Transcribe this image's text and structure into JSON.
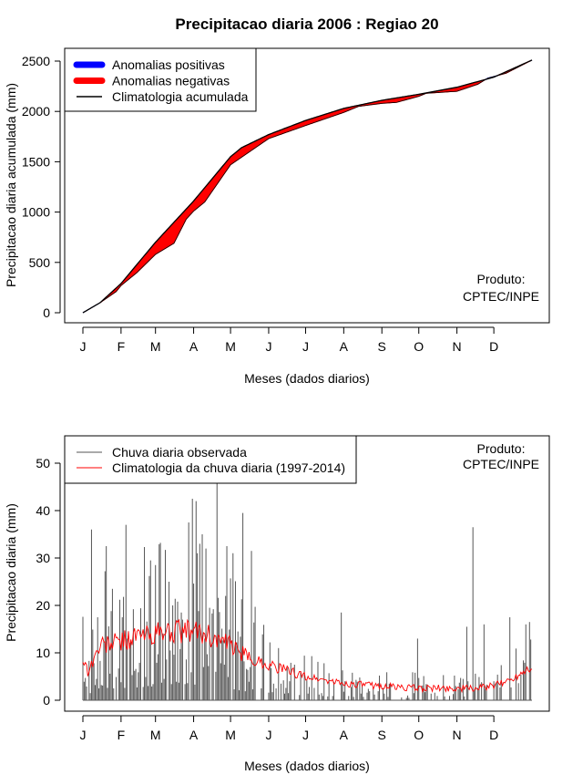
{
  "page": {
    "title": "Precipitacao diaria 2006 : Regiao 20"
  },
  "chart_data": [
    {
      "type": "area",
      "id": "accumulated",
      "title": "Precipitacao diaria 2006 : Regiao 20",
      "xlabel": "Meses (dados diarios)",
      "ylabel": "Precipitacao diaria acumulada (mm)",
      "x_tick_labels": [
        "J",
        "F",
        "M",
        "A",
        "M",
        "J",
        "J",
        "A",
        "S",
        "O",
        "N",
        "D"
      ],
      "x_tick_days": [
        1,
        32,
        60,
        91,
        121,
        152,
        182,
        213,
        244,
        274,
        305,
        335
      ],
      "xlim": [
        1,
        366
      ],
      "ylim": [
        0,
        2500
      ],
      "y_ticks": [
        0,
        500,
        1000,
        1500,
        2000,
        2500
      ],
      "legend": {
        "position": "top-left",
        "entries": [
          {
            "label": "Anomalias positivas",
            "color": "#0000ff",
            "style": "thick-line"
          },
          {
            "label": "Anomalias negativas",
            "color": "#ff0000",
            "style": "thick-line"
          },
          {
            "label": "Climatologia acumulada",
            "color": "#000000",
            "style": "line"
          }
        ]
      },
      "annotation": [
        "Produto:",
        "CPTEC/INPE"
      ],
      "climatology_anchor_days": [
        1,
        15,
        32,
        60,
        91,
        121,
        130,
        152,
        182,
        213,
        244,
        274,
        305,
        335,
        366
      ],
      "climatology_anchor_values": [
        0,
        100,
        290,
        700,
        1110,
        1550,
        1640,
        1770,
        1910,
        2030,
        2110,
        2170,
        2240,
        2340,
        2510
      ],
      "observed_anchor_days": [
        1,
        15,
        28,
        32,
        45,
        60,
        75,
        85,
        91,
        100,
        121,
        152,
        182,
        213,
        225,
        244,
        256,
        274,
        280,
        305,
        322,
        330,
        345,
        366
      ],
      "observed_anchor_values": [
        0,
        100,
        210,
        270,
        400,
        580,
        690,
        930,
        1010,
        1100,
        1470,
        1730,
        1860,
        1990,
        2050,
        2080,
        2090,
        2150,
        2180,
        2200,
        2270,
        2330,
        2380,
        2510
      ],
      "series": [
        {
          "name": "Climatologia acumulada",
          "color": "#000000"
        },
        {
          "name": "Anomalias negativas",
          "color": "#ff0000"
        },
        {
          "name": "Anomalias positivas",
          "color": "#0000ff"
        }
      ]
    },
    {
      "type": "bar",
      "id": "daily",
      "xlabel": "Meses (dados diarios)",
      "ylabel": "Precipitacao diaria (mm)",
      "x_tick_labels": [
        "J",
        "F",
        "M",
        "A",
        "M",
        "J",
        "J",
        "A",
        "S",
        "O",
        "N",
        "D"
      ],
      "x_tick_days": [
        1,
        32,
        60,
        91,
        121,
        152,
        182,
        213,
        244,
        274,
        305,
        335
      ],
      "xlim": [
        1,
        366
      ],
      "ylim": [
        0,
        50
      ],
      "y_ticks": [
        0,
        10,
        20,
        30,
        40,
        50
      ],
      "legend": {
        "position": "top-left",
        "entries": [
          {
            "label": "Chuva diaria observada",
            "color": "#555555",
            "style": "line"
          },
          {
            "label": "Climatologia da chuva diaria (1997-2014)",
            "color": "#ff0000",
            "style": "line"
          }
        ]
      },
      "annotation": [
        "Produto:",
        "CPTEC/INPE"
      ],
      "rain_seed": 20061,
      "rain_peaks": [
        {
          "day": 8,
          "value": 36
        },
        {
          "day": 20,
          "value": 32.5
        },
        {
          "day": 36,
          "value": 37
        },
        {
          "day": 56,
          "value": 29.5
        },
        {
          "day": 60,
          "value": 28.5
        },
        {
          "day": 87,
          "value": 37.5
        },
        {
          "day": 90,
          "value": 42.5
        },
        {
          "day": 93,
          "value": 42
        },
        {
          "day": 94,
          "value": 31
        },
        {
          "day": 98,
          "value": 35
        },
        {
          "day": 101,
          "value": 32
        },
        {
          "day": 110,
          "value": 46
        },
        {
          "day": 118,
          "value": 32.5
        },
        {
          "day": 123,
          "value": 31
        },
        {
          "day": 131,
          "value": 39.5
        },
        {
          "day": 138,
          "value": 31.5
        },
        {
          "day": 211,
          "value": 18.5
        },
        {
          "day": 273,
          "value": 13
        },
        {
          "day": 313,
          "value": 15.5
        },
        {
          "day": 318,
          "value": 36.5
        },
        {
          "day": 327,
          "value": 16
        },
        {
          "day": 348,
          "value": 17.5
        },
        {
          "day": 361,
          "value": 16
        }
      ],
      "climatology_anchor_days": [
        1,
        5,
        15,
        32,
        45,
        60,
        75,
        91,
        100,
        121,
        135,
        152,
        182,
        213,
        244,
        274,
        305,
        320,
        335,
        350,
        366
      ],
      "climatology_anchor_values": [
        9,
        6,
        11.5,
        12.5,
        13.5,
        14,
        14.5,
        14.5,
        14,
        11.5,
        9,
        7.5,
        5,
        3.5,
        3,
        2.5,
        2.5,
        2.5,
        3,
        4.5,
        7.5
      ]
    }
  ]
}
